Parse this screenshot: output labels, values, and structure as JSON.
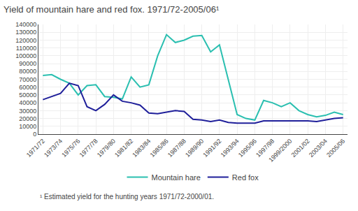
{
  "chart_data": {
    "type": "line",
    "title": "Yield of mountain hare and red fox. 1971/72-2005/06¹",
    "annotations": [
      "¹ Estimated yield for the hunting years 1971/72-2000/01."
    ],
    "categories": [
      "1971/72",
      null,
      "1973/74",
      null,
      "1975/76",
      null,
      "1977/78",
      null,
      "1979/80",
      null,
      "1981/82",
      null,
      "1983/84",
      null,
      "1985/86",
      null,
      "1987/88",
      null,
      "1989/90",
      null,
      "1991/92",
      null,
      "1993/94",
      null,
      "1995/96",
      null,
      "1997/98",
      null,
      "1999/2000",
      null,
      "2001/02",
      null,
      "2003/04",
      null,
      "2005/06"
    ],
    "series": [
      {
        "name": "Mountain hare",
        "color": "#2ABFB0",
        "values": [
          75000,
          76000,
          70000,
          65000,
          50000,
          62000,
          63000,
          48000,
          47000,
          45000,
          73000,
          60000,
          63000,
          100000,
          127000,
          117000,
          120000,
          125000,
          126000,
          105000,
          114000,
          70000,
          25000,
          20000,
          18000,
          43000,
          40000,
          35000,
          40000,
          30000,
          25000,
          22000,
          24000,
          28000,
          25000
        ]
      },
      {
        "name": "Red fox",
        "color": "#1F1F9A",
        "values": [
          44000,
          48000,
          52000,
          65000,
          62000,
          35000,
          30000,
          38000,
          50000,
          42000,
          40000,
          37000,
          27000,
          26000,
          28000,
          30000,
          29000,
          19000,
          18000,
          16000,
          18000,
          15000,
          14000,
          14000,
          14000,
          17000,
          17000,
          17000,
          17000,
          17000,
          17000,
          16000,
          18000,
          20000,
          21000
        ]
      }
    ],
    "ylim": [
      0,
      140000
    ],
    "yticks": [
      0,
      10000,
      20000,
      30000,
      40000,
      50000,
      60000,
      70000,
      80000,
      90000,
      100000,
      110000,
      120000,
      130000,
      140000
    ],
    "grid": true,
    "legend": "bottom"
  }
}
